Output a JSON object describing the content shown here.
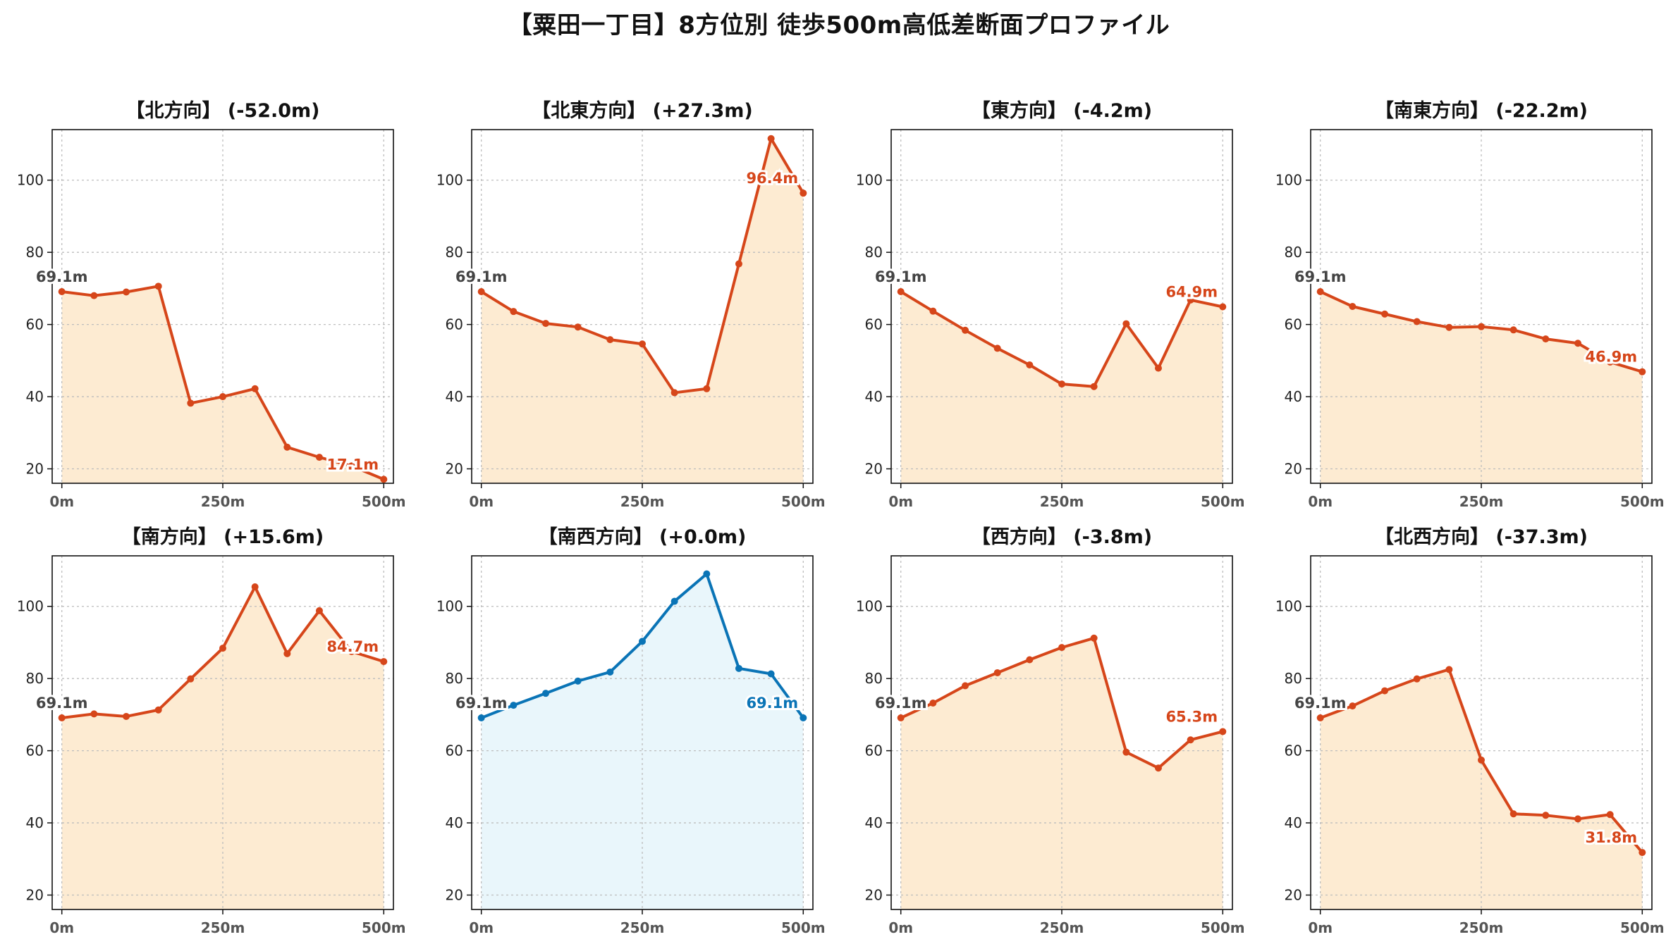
{
  "title": "【粟田一丁目】8方位別 徒歩500m高低差断面プロファイル",
  "colors": {
    "line_default": "#d6461a",
    "fill_default": "#fdebd2",
    "line_highlight": "#0a74b6",
    "fill_highlight": "#e9f6fb"
  },
  "chart_data": [
    {
      "type": "area",
      "title": "【北方向】 (-52.0m)",
      "highlight": false,
      "x": [
        0,
        50,
        100,
        150,
        200,
        250,
        300,
        350,
        400,
        450,
        500
      ],
      "values": [
        69.1,
        68.0,
        69.0,
        70.6,
        38.2,
        40.0,
        42.2,
        26.0,
        23.2,
        20.8,
        17.1
      ],
      "start_label": "69.1m",
      "end_label": "17.1m",
      "x_ticks": [
        "0m",
        "250m",
        "500m"
      ],
      "y_ticks": [
        20,
        40,
        60,
        80,
        100
      ],
      "xlim": [
        -15,
        515
      ],
      "ylim": [
        16,
        114
      ],
      "grid": true
    },
    {
      "type": "area",
      "title": "【北東方向】 (+27.3m)",
      "highlight": false,
      "x": [
        0,
        50,
        100,
        150,
        200,
        250,
        300,
        350,
        400,
        450,
        500
      ],
      "values": [
        69.1,
        63.6,
        60.3,
        59.3,
        55.8,
        54.6,
        41.1,
        42.2,
        76.8,
        111.5,
        96.4
      ],
      "start_label": "69.1m",
      "end_label": "96.4m",
      "x_ticks": [
        "0m",
        "250m",
        "500m"
      ],
      "y_ticks": [
        20,
        40,
        60,
        80,
        100
      ],
      "xlim": [
        -15,
        515
      ],
      "ylim": [
        16,
        114
      ],
      "grid": true
    },
    {
      "type": "area",
      "title": "【東方向】 (-4.2m)",
      "highlight": false,
      "x": [
        0,
        50,
        100,
        150,
        200,
        250,
        300,
        350,
        400,
        450,
        500
      ],
      "values": [
        69.1,
        63.7,
        58.4,
        53.4,
        48.8,
        43.5,
        42.8,
        60.2,
        47.9,
        66.8,
        64.9
      ],
      "start_label": "69.1m",
      "end_label": "64.9m",
      "x_ticks": [
        "0m",
        "250m",
        "500m"
      ],
      "y_ticks": [
        20,
        40,
        60,
        80,
        100
      ],
      "xlim": [
        -15,
        515
      ],
      "ylim": [
        16,
        114
      ],
      "grid": true
    },
    {
      "type": "area",
      "title": "【南東方向】 (-22.2m)",
      "highlight": false,
      "x": [
        0,
        50,
        100,
        150,
        200,
        250,
        300,
        350,
        400,
        450,
        500
      ],
      "values": [
        69.1,
        65.0,
        62.9,
        60.8,
        59.2,
        59.4,
        58.5,
        56.0,
        54.8,
        49.6,
        46.9
      ],
      "start_label": "69.1m",
      "end_label": "46.9m",
      "x_ticks": [
        "0m",
        "250m",
        "500m"
      ],
      "y_ticks": [
        20,
        40,
        60,
        80,
        100
      ],
      "xlim": [
        -15,
        515
      ],
      "ylim": [
        16,
        114
      ],
      "grid": true
    },
    {
      "type": "area",
      "title": "【南方向】 (+15.6m)",
      "highlight": false,
      "x": [
        0,
        50,
        100,
        150,
        200,
        250,
        300,
        350,
        400,
        450,
        500
      ],
      "values": [
        69.1,
        70.2,
        69.5,
        71.3,
        79.9,
        88.4,
        105.4,
        86.9,
        98.8,
        87.5,
        84.7
      ],
      "start_label": "69.1m",
      "end_label": "84.7m",
      "x_ticks": [
        "0m",
        "250m",
        "500m"
      ],
      "y_ticks": [
        20,
        40,
        60,
        80,
        100
      ],
      "xlim": [
        -15,
        515
      ],
      "ylim": [
        16,
        114
      ],
      "grid": true
    },
    {
      "type": "area",
      "title": "【南西方向】 (+0.0m)",
      "highlight": true,
      "x": [
        0,
        50,
        100,
        150,
        200,
        250,
        300,
        350,
        400,
        450,
        500
      ],
      "values": [
        69.1,
        72.6,
        75.9,
        79.3,
        81.8,
        90.3,
        101.4,
        109.0,
        82.8,
        81.3,
        69.1
      ],
      "start_label": "69.1m",
      "end_label": "69.1m",
      "x_ticks": [
        "0m",
        "250m",
        "500m"
      ],
      "y_ticks": [
        20,
        40,
        60,
        80,
        100
      ],
      "xlim": [
        -15,
        515
      ],
      "ylim": [
        16,
        114
      ],
      "grid": true
    },
    {
      "type": "area",
      "title": "【西方向】 (-3.8m)",
      "highlight": false,
      "x": [
        0,
        50,
        100,
        150,
        200,
        250,
        300,
        350,
        400,
        450,
        500
      ],
      "values": [
        69.1,
        73.2,
        78.0,
        81.6,
        85.2,
        88.6,
        91.2,
        59.6,
        55.2,
        63.0,
        65.3
      ],
      "start_label": "69.1m",
      "end_label": "65.3m",
      "x_ticks": [
        "0m",
        "250m",
        "500m"
      ],
      "y_ticks": [
        20,
        40,
        60,
        80,
        100
      ],
      "xlim": [
        -15,
        515
      ],
      "ylim": [
        16,
        114
      ],
      "grid": true
    },
    {
      "type": "area",
      "title": "【北西方向】 (-37.3m)",
      "highlight": false,
      "x": [
        0,
        50,
        100,
        150,
        200,
        250,
        300,
        350,
        400,
        450,
        500
      ],
      "values": [
        69.1,
        72.4,
        76.6,
        79.9,
        82.5,
        57.4,
        42.5,
        42.1,
        41.1,
        42.3,
        31.8
      ],
      "start_label": "69.1m",
      "end_label": "31.8m",
      "x_ticks": [
        "0m",
        "250m",
        "500m"
      ],
      "y_ticks": [
        20,
        40,
        60,
        80,
        100
      ],
      "xlim": [
        -15,
        515
      ],
      "ylim": [
        16,
        114
      ],
      "grid": true
    }
  ]
}
